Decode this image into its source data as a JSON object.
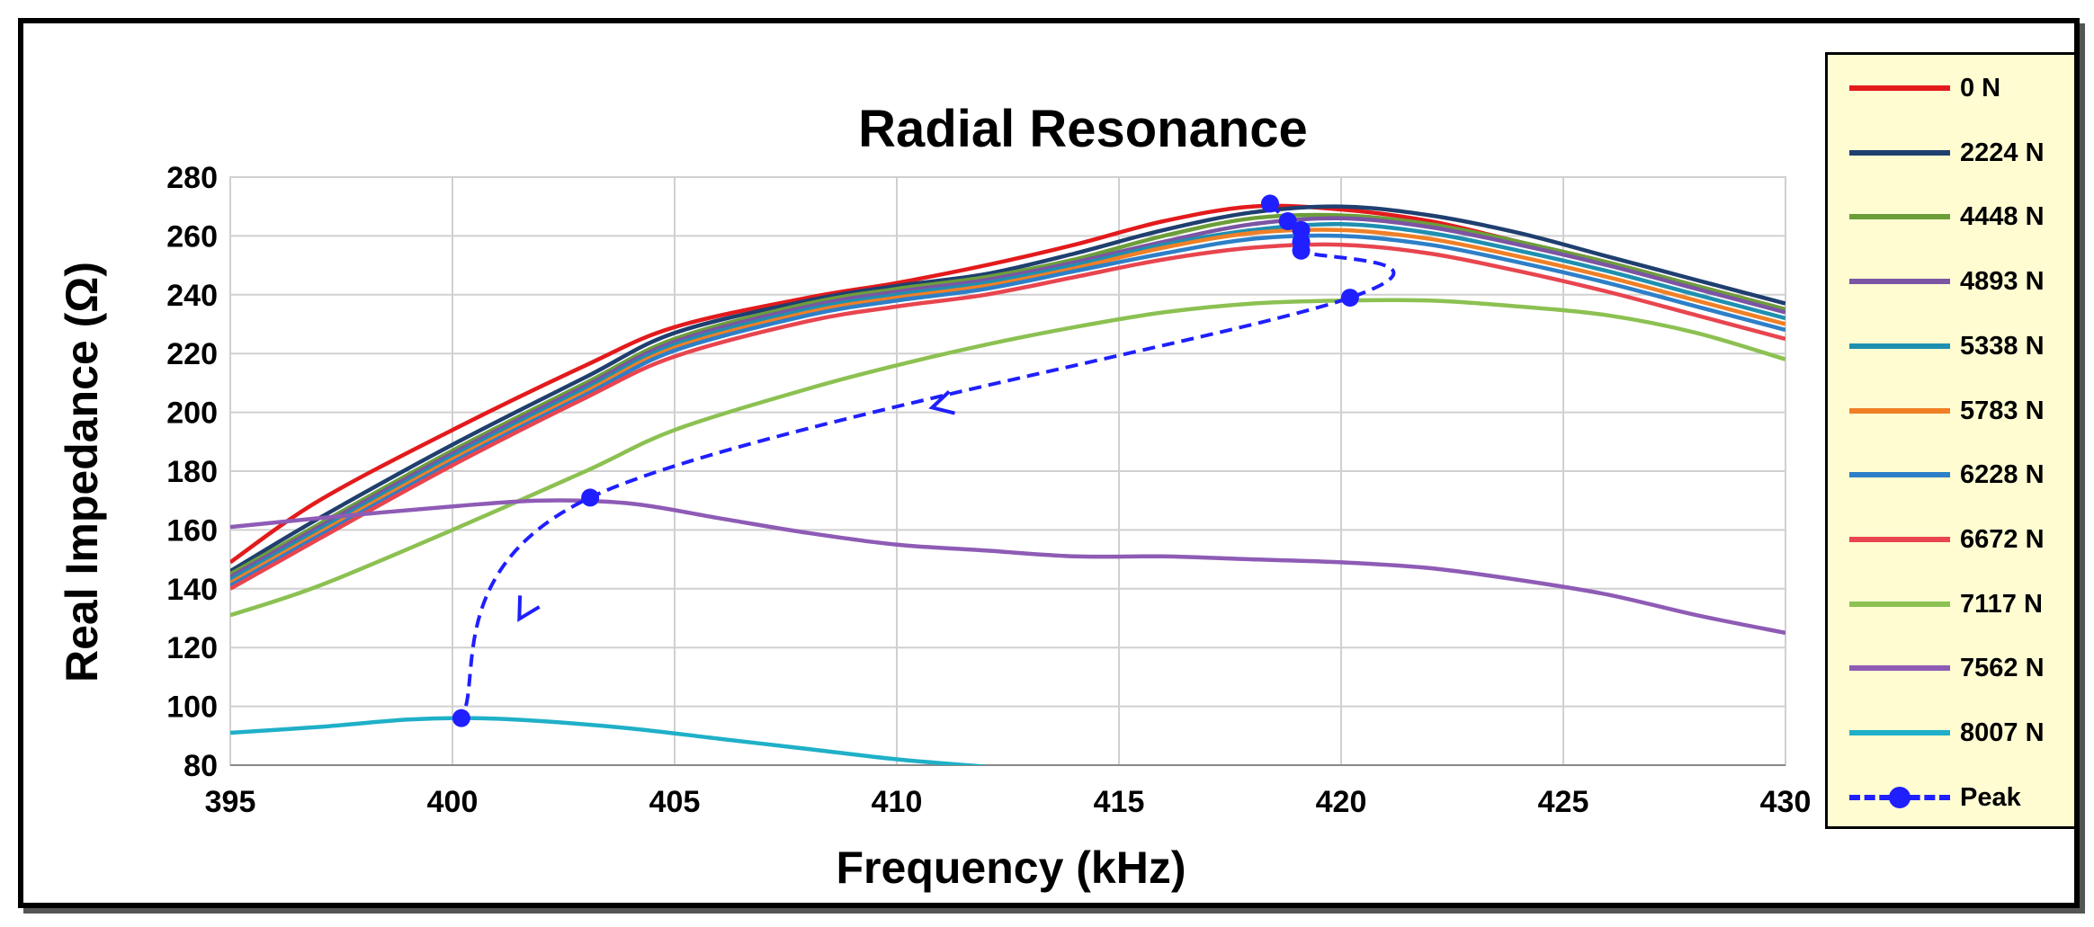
{
  "chart_data": {
    "type": "line",
    "title": "Radial Resonance",
    "xlabel": "Frequency (kHz)",
    "ylabel": "Real Impedance (Ω)",
    "xlim": [
      395,
      430
    ],
    "ylim": [
      80,
      280
    ],
    "xticks": [
      "395",
      "400",
      "405",
      "410",
      "415",
      "420",
      "425",
      "430"
    ],
    "yticks": [
      "80",
      "100",
      "120",
      "140",
      "160",
      "180",
      "200",
      "220",
      "240",
      "260",
      "280"
    ],
    "grid": true,
    "legend_position": "right",
    "series": [
      {
        "name": "0 N",
        "color": "#e31a1c",
        "points": [
          [
            395,
            149
          ],
          [
            397,
            170
          ],
          [
            400,
            194
          ],
          [
            403,
            216
          ],
          [
            405,
            229
          ],
          [
            408,
            239
          ],
          [
            410,
            244
          ],
          [
            412,
            250
          ],
          [
            414,
            257
          ],
          [
            416,
            265
          ],
          [
            418,
            270
          ],
          [
            420,
            269
          ],
          [
            422,
            265
          ],
          [
            424,
            258
          ],
          [
            426,
            251
          ],
          [
            428,
            243
          ],
          [
            430,
            235
          ]
        ]
      },
      {
        "name": "2224 N",
        "color": "#1f3f6f",
        "points": [
          [
            395,
            146
          ],
          [
            397,
            164
          ],
          [
            400,
            189
          ],
          [
            403,
            212
          ],
          [
            405,
            227
          ],
          [
            408,
            238
          ],
          [
            410,
            243
          ],
          [
            412,
            247
          ],
          [
            414,
            254
          ],
          [
            416,
            262
          ],
          [
            418,
            268
          ],
          [
            420,
            270
          ],
          [
            422,
            267
          ],
          [
            424,
            261
          ],
          [
            426,
            253
          ],
          [
            428,
            245
          ],
          [
            430,
            237
          ]
        ]
      },
      {
        "name": "4448 N",
        "color": "#6b9e3a",
        "points": [
          [
            395,
            145
          ],
          [
            397,
            162
          ],
          [
            400,
            187
          ],
          [
            403,
            210
          ],
          [
            405,
            225
          ],
          [
            408,
            237
          ],
          [
            410,
            242
          ],
          [
            412,
            246
          ],
          [
            414,
            252
          ],
          [
            416,
            260
          ],
          [
            418,
            266
          ],
          [
            420,
            267
          ],
          [
            422,
            264
          ],
          [
            424,
            258
          ],
          [
            426,
            251
          ],
          [
            428,
            243
          ],
          [
            430,
            235
          ]
        ]
      },
      {
        "name": "4893 N",
        "color": "#7b55a3",
        "points": [
          [
            395,
            144
          ],
          [
            397,
            161
          ],
          [
            400,
            186
          ],
          [
            403,
            209
          ],
          [
            405,
            224
          ],
          [
            408,
            236
          ],
          [
            410,
            241
          ],
          [
            412,
            245
          ],
          [
            414,
            251
          ],
          [
            416,
            258
          ],
          [
            418,
            264
          ],
          [
            420,
            266
          ],
          [
            422,
            263
          ],
          [
            424,
            257
          ],
          [
            426,
            250
          ],
          [
            428,
            242
          ],
          [
            430,
            234
          ]
        ]
      },
      {
        "name": "5338 N",
        "color": "#1f8fb0",
        "points": [
          [
            395,
            143
          ],
          [
            397,
            160
          ],
          [
            400,
            185
          ],
          [
            403,
            208
          ],
          [
            405,
            223
          ],
          [
            408,
            235
          ],
          [
            410,
            240
          ],
          [
            412,
            244
          ],
          [
            414,
            250
          ],
          [
            416,
            257
          ],
          [
            418,
            262
          ],
          [
            420,
            264
          ],
          [
            422,
            261
          ],
          [
            424,
            255
          ],
          [
            426,
            248
          ],
          [
            428,
            240
          ],
          [
            430,
            232
          ]
        ]
      },
      {
        "name": "5783 N",
        "color": "#f07f26",
        "points": [
          [
            395,
            142
          ],
          [
            397,
            159
          ],
          [
            400,
            184
          ],
          [
            403,
            207
          ],
          [
            405,
            222
          ],
          [
            408,
            234
          ],
          [
            410,
            239
          ],
          [
            412,
            243
          ],
          [
            414,
            249
          ],
          [
            416,
            256
          ],
          [
            418,
            261
          ],
          [
            420,
            262
          ],
          [
            422,
            259
          ],
          [
            424,
            253
          ],
          [
            426,
            246
          ],
          [
            428,
            238
          ],
          [
            430,
            230
          ]
        ]
      },
      {
        "name": "6228 N",
        "color": "#2d7fc8",
        "points": [
          [
            395,
            141
          ],
          [
            397,
            158
          ],
          [
            400,
            183
          ],
          [
            403,
            206
          ],
          [
            405,
            221
          ],
          [
            408,
            233
          ],
          [
            410,
            238
          ],
          [
            412,
            242
          ],
          [
            414,
            248
          ],
          [
            416,
            254
          ],
          [
            418,
            259
          ],
          [
            420,
            260
          ],
          [
            422,
            257
          ],
          [
            424,
            251
          ],
          [
            426,
            244
          ],
          [
            428,
            236
          ],
          [
            430,
            228
          ]
        ]
      },
      {
        "name": "6672 N",
        "color": "#e8454f",
        "points": [
          [
            395,
            140
          ],
          [
            397,
            157
          ],
          [
            400,
            182
          ],
          [
            403,
            205
          ],
          [
            405,
            219
          ],
          [
            408,
            231
          ],
          [
            410,
            236
          ],
          [
            412,
            240
          ],
          [
            414,
            246
          ],
          [
            416,
            252
          ],
          [
            418,
            256
          ],
          [
            420,
            257
          ],
          [
            422,
            254
          ],
          [
            424,
            248
          ],
          [
            426,
            241
          ],
          [
            428,
            233
          ],
          [
            430,
            225
          ]
        ]
      },
      {
        "name": "7117 N",
        "color": "#8cc152",
        "points": [
          [
            395,
            131
          ],
          [
            397,
            141
          ],
          [
            400,
            160
          ],
          [
            403,
            180
          ],
          [
            405,
            194
          ],
          [
            408,
            208
          ],
          [
            410,
            216
          ],
          [
            412,
            223
          ],
          [
            414,
            229
          ],
          [
            416,
            234
          ],
          [
            418,
            237
          ],
          [
            420,
            238
          ],
          [
            422,
            238
          ],
          [
            424,
            236
          ],
          [
            426,
            233
          ],
          [
            428,
            227
          ],
          [
            430,
            218
          ]
        ]
      },
      {
        "name": "7562 N",
        "color": "#8e5bb5",
        "points": [
          [
            395,
            161
          ],
          [
            397,
            164
          ],
          [
            400,
            168
          ],
          [
            402,
            170
          ],
          [
            404,
            169
          ],
          [
            406,
            164
          ],
          [
            408,
            159
          ],
          [
            410,
            155
          ],
          [
            412,
            153
          ],
          [
            414,
            151
          ],
          [
            416,
            151
          ],
          [
            418,
            150
          ],
          [
            420,
            149
          ],
          [
            422,
            147
          ],
          [
            424,
            143
          ],
          [
            426,
            138
          ],
          [
            428,
            131
          ],
          [
            430,
            125
          ]
        ]
      },
      {
        "name": "8007 N",
        "color": "#1fb0c8",
        "points": [
          [
            395,
            91
          ],
          [
            397,
            93
          ],
          [
            399,
            95.5
          ],
          [
            400.5,
            96
          ],
          [
            402,
            95
          ],
          [
            404,
            92.5
          ],
          [
            406,
            89
          ],
          [
            408,
            85.5
          ],
          [
            410,
            82
          ],
          [
            412,
            79.5
          ]
        ]
      },
      {
        "name": "Peak",
        "color": "#1f1fff",
        "dashed": true,
        "points": [
          [
            418.4,
            271
          ],
          [
            418.8,
            265
          ],
          [
            419.1,
            262
          ],
          [
            419.1,
            258
          ],
          [
            419.1,
            255
          ],
          [
            420.2,
            239
          ],
          [
            403.1,
            171
          ],
          [
            400.2,
            96
          ]
        ]
      }
    ]
  }
}
